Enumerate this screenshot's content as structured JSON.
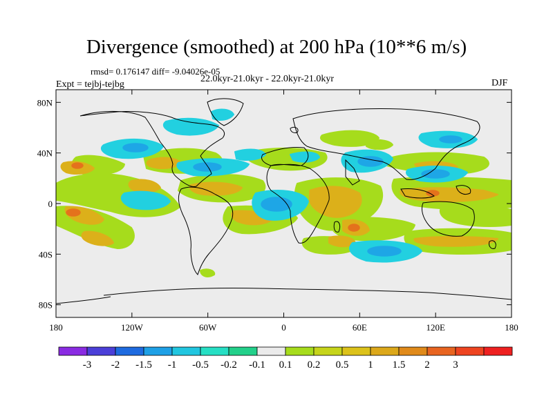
{
  "title": "Divergence (smoothed) at 200 hPa (10**6 m/s)",
  "stats_line": "rmsd= 0.176147 diff= -9.04026e-05",
  "period_line": "22.0kyr-21.0kyr - 22.0kyr-21.0kyr",
  "experiment_line": "Expt = tejbj-tejbg",
  "season": "DJF",
  "map": {
    "lon_range": [
      -180,
      180
    ],
    "lat_range": [
      -90,
      90
    ],
    "lat_ticks": [
      {
        "value": 80,
        "label": "80N"
      },
      {
        "value": 40,
        "label": "40N"
      },
      {
        "value": 0,
        "label": "0"
      },
      {
        "value": -40,
        "label": "40S"
      },
      {
        "value": -80,
        "label": "80S"
      }
    ],
    "lon_ticks": [
      {
        "value": -180,
        "label": "180"
      },
      {
        "value": -120,
        "label": "120W"
      },
      {
        "value": -60,
        "label": "60W"
      },
      {
        "value": 0,
        "label": "0"
      },
      {
        "value": 60,
        "label": "60E"
      },
      {
        "value": 120,
        "label": "120E"
      },
      {
        "value": 180,
        "label": "180"
      }
    ],
    "background_color": "#ececec"
  },
  "colorbar": {
    "colors": [
      "#8a2be2",
      "#4b3fd8",
      "#1e6be0",
      "#1ea0e6",
      "#21c6e0",
      "#26dfc4",
      "#22d08a",
      "#ebebeb",
      "#a6dc1c",
      "#c6d41a",
      "#dcc21a",
      "#dca81a",
      "#e08a1a",
      "#e86420",
      "#ee4420",
      "#ee2020"
    ],
    "labels": [
      "-3",
      "-2",
      "-1.5",
      "-1",
      "-0.5",
      "-0.2",
      "-0.1",
      "0.1",
      "0.2",
      "0.5",
      "1",
      "1.5",
      "2",
      "3"
    ]
  }
}
